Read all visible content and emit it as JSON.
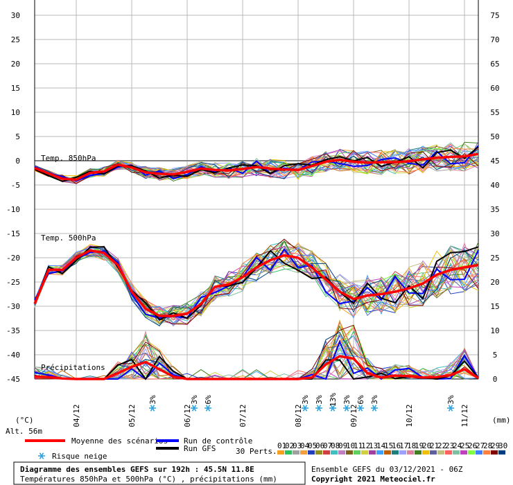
{
  "chart_data": {
    "type": "line",
    "title": "Diagramme des ensembles GEFS sur 192h : 45.5N 11.8E",
    "subtitle": "Températures 850hPa et 500hPa (°C) , précipitations (mm)",
    "left_axis": {
      "unit": "(°C)",
      "range": [
        -45,
        30
      ],
      "ticks": [
        30,
        25,
        20,
        15,
        10,
        5,
        0,
        -5,
        -10,
        -15,
        -20,
        -25,
        -30,
        -35,
        -40,
        -45
      ]
    },
    "right_axis": {
      "unit": "(mm)",
      "range": [
        0,
        75
      ],
      "ticks": [
        75,
        70,
        65,
        60,
        55,
        50,
        45,
        40,
        35,
        30,
        25,
        20,
        15,
        10,
        5,
        0
      ]
    },
    "altitude": "Alt. 56m",
    "x_range": [
      0,
      192
    ],
    "x_ticks": [
      {
        "h": 18,
        "label": "04/12"
      },
      {
        "h": 42,
        "label": "05/12"
      },
      {
        "h": 66,
        "label": "06/12"
      },
      {
        "h": 90,
        "label": "07/12"
      },
      {
        "h": 114,
        "label": "08/12"
      },
      {
        "h": 138,
        "label": "09/12"
      },
      {
        "h": 162,
        "label": "10/12"
      },
      {
        "h": 186,
        "label": "11/12"
      }
    ],
    "panel_labels": {
      "t850": "Temp. 850hPa",
      "t500": "Temp. 500hPa",
      "precip": "Précipitations"
    },
    "t850_mean": [
      [
        0,
        -1.5
      ],
      [
        6,
        -2.6
      ],
      [
        12,
        -3.7
      ],
      [
        18,
        -3.9
      ],
      [
        24,
        -2.5
      ],
      [
        30,
        -2.2
      ],
      [
        36,
        -0.8
      ],
      [
        42,
        -1.4
      ],
      [
        48,
        -2.4
      ],
      [
        54,
        -2.7
      ],
      [
        60,
        -2.8
      ],
      [
        66,
        -2.3
      ],
      [
        72,
        -1.6
      ],
      [
        78,
        -1.9
      ],
      [
        84,
        -2.0
      ],
      [
        90,
        -1.7
      ],
      [
        96,
        -1.3
      ],
      [
        102,
        -1.6
      ],
      [
        108,
        -1.8
      ],
      [
        114,
        -1.9
      ],
      [
        120,
        -1.1
      ],
      [
        126,
        -0.2
      ],
      [
        132,
        0.2
      ],
      [
        138,
        -0.2
      ],
      [
        144,
        -0.4
      ],
      [
        150,
        -0.3
      ],
      [
        156,
        -0.3
      ],
      [
        162,
        -0.1
      ],
      [
        168,
        0.3
      ],
      [
        174,
        0.6
      ],
      [
        180,
        0.8
      ],
      [
        186,
        0.9
      ],
      [
        192,
        1.4
      ]
    ],
    "t500_mean": [
      [
        0,
        -29.5
      ],
      [
        6,
        -22.5
      ],
      [
        12,
        -22.5
      ],
      [
        18,
        -20
      ],
      [
        24,
        -18.5
      ],
      [
        30,
        -19
      ],
      [
        36,
        -21.5
      ],
      [
        42,
        -27
      ],
      [
        48,
        -30.5
      ],
      [
        54,
        -32
      ],
      [
        60,
        -32
      ],
      [
        66,
        -31.5
      ],
      [
        72,
        -29.5
      ],
      [
        78,
        -26
      ],
      [
        84,
        -25.5
      ],
      [
        90,
        -24
      ],
      [
        96,
        -22
      ],
      [
        102,
        -20.5
      ],
      [
        108,
        -19.5
      ],
      [
        114,
        -20
      ],
      [
        120,
        -22
      ],
      [
        126,
        -24.5
      ],
      [
        132,
        -27
      ],
      [
        138,
        -28.5
      ],
      [
        144,
        -27.8
      ],
      [
        150,
        -27.5
      ],
      [
        156,
        -27
      ],
      [
        162,
        -26.3
      ],
      [
        168,
        -25.3
      ],
      [
        174,
        -23.5
      ],
      [
        180,
        -22.5
      ],
      [
        186,
        -22
      ],
      [
        192,
        -21.5
      ]
    ],
    "precip_mean": [
      [
        0,
        0.5
      ],
      [
        6,
        0.4
      ],
      [
        12,
        0.1
      ],
      [
        18,
        0
      ],
      [
        24,
        0
      ],
      [
        30,
        0
      ],
      [
        36,
        1.2
      ],
      [
        42,
        2.5
      ],
      [
        48,
        3.5
      ],
      [
        54,
        2
      ],
      [
        60,
        0.5
      ],
      [
        66,
        0
      ],
      [
        72,
        0
      ],
      [
        78,
        0
      ],
      [
        84,
        0
      ],
      [
        90,
        0
      ],
      [
        96,
        0
      ],
      [
        102,
        0
      ],
      [
        108,
        0
      ],
      [
        114,
        0
      ],
      [
        120,
        0.3
      ],
      [
        126,
        3
      ],
      [
        132,
        4.7
      ],
      [
        138,
        4.2
      ],
      [
        144,
        1.2
      ],
      [
        150,
        0.3
      ],
      [
        156,
        0.7
      ],
      [
        162,
        0.6
      ],
      [
        168,
        0.3
      ],
      [
        174,
        0.4
      ],
      [
        180,
        0.8
      ],
      [
        186,
        2
      ],
      [
        192,
        0.2
      ]
    ],
    "snow_risk": [
      {
        "h": 51,
        "pct": "3%"
      },
      {
        "h": 69,
        "pct": "3%"
      },
      {
        "h": 75,
        "pct": "6%"
      },
      {
        "h": 117,
        "pct": "3%"
      },
      {
        "h": 123,
        "pct": "3%"
      },
      {
        "h": 129,
        "pct": "13%"
      },
      {
        "h": 135,
        "pct": "3%"
      },
      {
        "h": 141,
        "pct": "6%"
      },
      {
        "h": 147,
        "pct": "3%"
      },
      {
        "h": 180,
        "pct": "3%"
      }
    ],
    "legend": {
      "mean": "Moyenne des scénarios",
      "control": "Run de contrôle",
      "gfs": "Run GFS",
      "snow": "Risque neige",
      "perts": "30 Perts.",
      "pert_numbers": [
        "01",
        "02",
        "03",
        "04",
        "05",
        "06",
        "07",
        "08",
        "09",
        "10",
        "11",
        "12",
        "13",
        "14",
        "15",
        "16",
        "17",
        "18",
        "19",
        "20",
        "21",
        "22",
        "23",
        "24",
        "25",
        "26",
        "27",
        "28",
        "29",
        "30"
      ]
    },
    "footer": {
      "ensemble": "Ensemble GEFS du 03/12/2021 - 06Z",
      "copyright": "Copyright 2021 Meteociel.fr"
    },
    "colors": {
      "mean": "#ff0000",
      "control": "#0000ff",
      "gfs": "#000000",
      "snow": "#33a3dc",
      "perts": [
        "#f4a020",
        "#30c060",
        "#a0a0a0",
        "#f0a040",
        "#2040c0",
        "#909020",
        "#d04040",
        "#40c0c0",
        "#c080c0",
        "#806020",
        "#60d060",
        "#d0d040",
        "#a040a0",
        "#40a0ff",
        "#c06000",
        "#208080",
        "#a0a0ff",
        "#e080a0",
        "#408020",
        "#f0c000",
        "#6060a0",
        "#c0c080",
        "#ff6060",
        "#80c0a0",
        "#c040c0",
        "#80ff40",
        "#4080ff",
        "#ff8040",
        "#800000",
        "#004080"
      ]
    }
  }
}
